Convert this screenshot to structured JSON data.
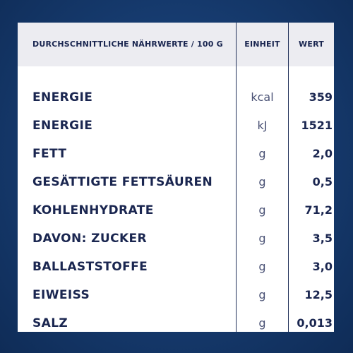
{
  "header": {
    "name": "DURCHSCHNITTLICHE NÄHRWERTE / 100 G",
    "unit": "EINHEIT",
    "value": "WERT"
  },
  "rows": [
    {
      "name": "ENERGIE",
      "unit": "kcal",
      "value": "359"
    },
    {
      "name": "ENERGIE",
      "unit": "kJ",
      "value": "1521"
    },
    {
      "name": "FETT",
      "unit": "g",
      "value": "2,0"
    },
    {
      "name": "GESÄTTIGTE FETTSÄUREN",
      "unit": "g",
      "value": "0,5"
    },
    {
      "name": "KOHLENHYDRATE",
      "unit": "g",
      "value": "71,2"
    },
    {
      "name": "DAVON: ZUCKER",
      "unit": "g",
      "value": "3,5"
    },
    {
      "name": "BALLASTSTOFFE",
      "unit": "g",
      "value": "3,0"
    },
    {
      "name": "EIWEISS",
      "unit": "g",
      "value": "12,5"
    },
    {
      "name": "SALZ",
      "unit": "g",
      "value": "0,013"
    }
  ],
  "colors": {
    "background": "#173d72",
    "text": "#1a2650",
    "header_bg": "#ececf1"
  }
}
